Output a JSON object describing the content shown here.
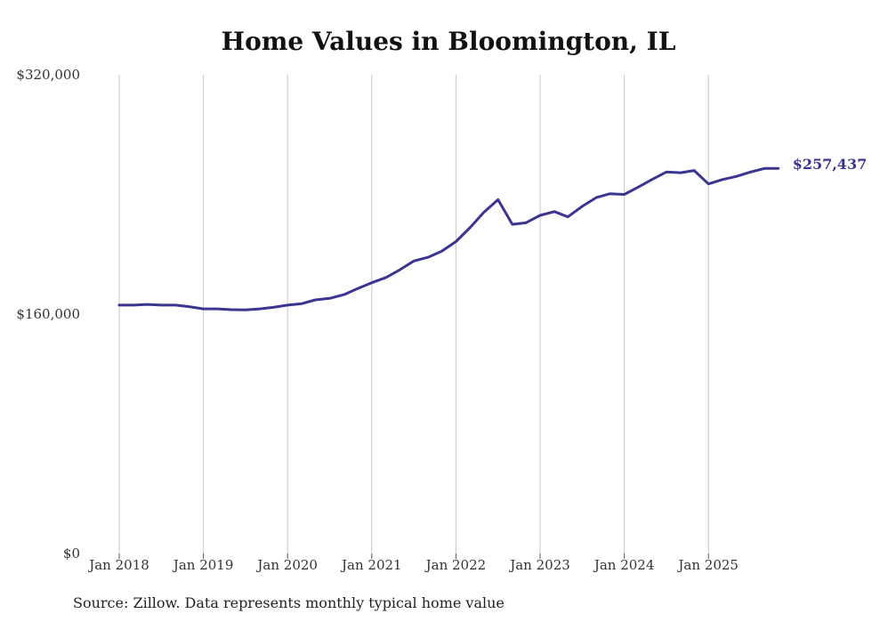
{
  "chart_data": {
    "type": "line",
    "title": "Home Values in Bloomington, IL",
    "source": "Source: Zillow. Data represents monthly typical home value",
    "xlabel": "",
    "ylabel": "",
    "ylim": [
      0,
      320000
    ],
    "y_ticks": [
      0,
      160000,
      320000
    ],
    "y_tick_labels": [
      "$0",
      "$160,000",
      "$320,000"
    ],
    "x_ticks": [
      2018,
      2019,
      2020,
      2021,
      2022,
      2023,
      2024,
      2025
    ],
    "x_tick_labels": [
      "Jan 2018",
      "Jan 2019",
      "Jan 2020",
      "Jan 2021",
      "Jan 2022",
      "Jan 2023",
      "Jan 2024",
      "Jan 2025"
    ],
    "xlim": [
      2018,
      2025.83
    ],
    "grid": "vertical",
    "line_color": "#3b3591",
    "end_label": "$257,437",
    "series": [
      {
        "name": "Typical home value",
        "x": [
          2018.0,
          2018.17,
          2018.33,
          2018.5,
          2018.67,
          2018.83,
          2019.0,
          2019.17,
          2019.33,
          2019.5,
          2019.67,
          2019.83,
          2020.0,
          2020.17,
          2020.33,
          2020.5,
          2020.67,
          2020.83,
          2021.0,
          2021.17,
          2021.33,
          2021.5,
          2021.67,
          2021.83,
          2022.0,
          2022.17,
          2022.33,
          2022.5,
          2022.67,
          2022.83,
          2023.0,
          2023.17,
          2023.33,
          2023.5,
          2023.67,
          2023.83,
          2024.0,
          2024.17,
          2024.33,
          2024.5,
          2024.67,
          2024.83,
          2025.0,
          2025.17,
          2025.33,
          2025.5,
          2025.67,
          2025.83
        ],
        "values": [
          166000,
          166000,
          166500,
          166000,
          166000,
          165000,
          163500,
          163500,
          163000,
          162800,
          163500,
          164500,
          166000,
          167000,
          169500,
          170500,
          173000,
          177000,
          181000,
          184500,
          189500,
          195500,
          198000,
          202000,
          208500,
          218000,
          228000,
          236500,
          220000,
          221000,
          226000,
          228500,
          225000,
          232000,
          238000,
          240500,
          240000,
          245000,
          250000,
          255000,
          254500,
          256000,
          247000,
          250000,
          252000,
          255000,
          257437,
          257437
        ]
      }
    ]
  }
}
